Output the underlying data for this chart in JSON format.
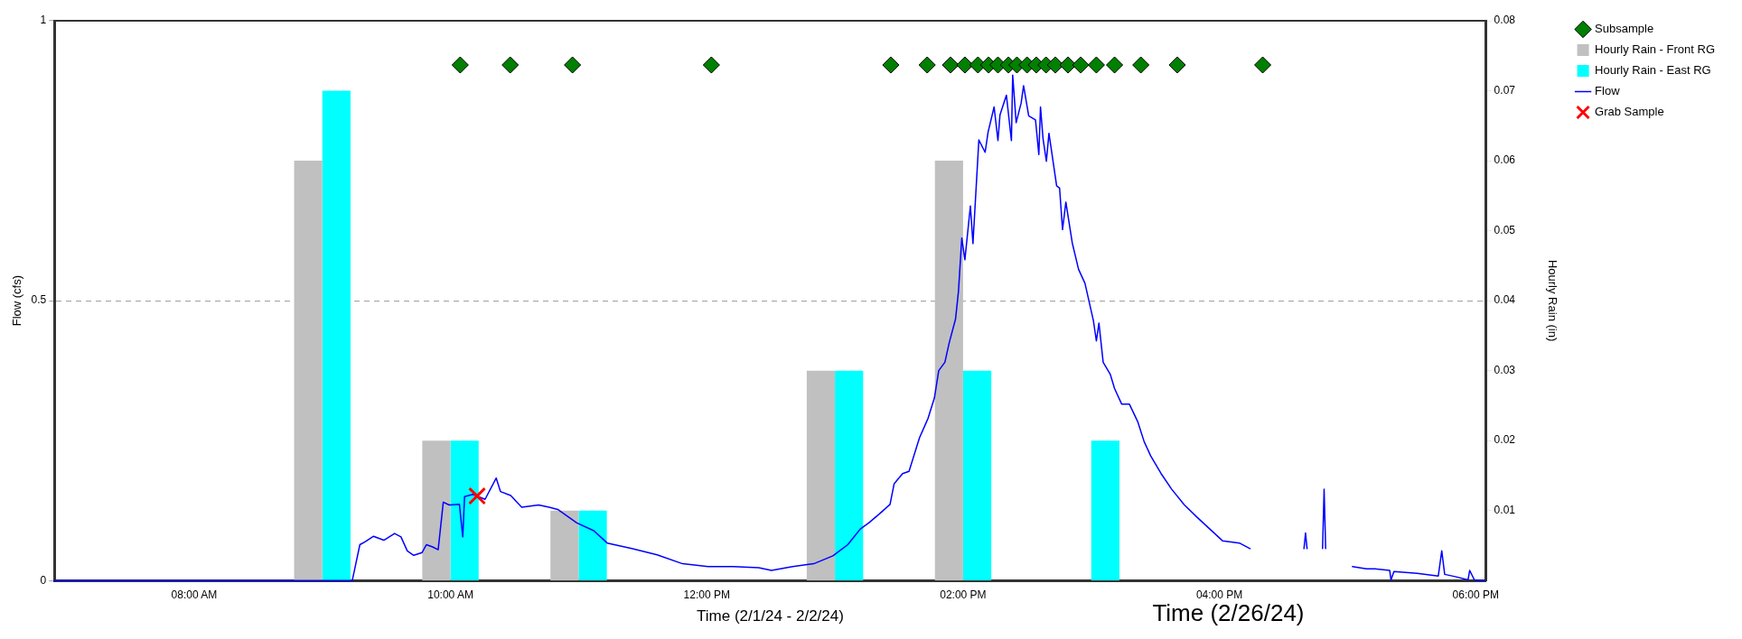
{
  "chart_data": {
    "type": "line",
    "xlabel": "Time (2/1/24 - 2/2/24)",
    "ylabel": "Flow (cfs)",
    "y2label": "Hourly Rain (in)",
    "xlim": [
      6.91,
      18.08
    ],
    "xticks": [
      {
        "value": 8,
        "label": "08:00 AM"
      },
      {
        "value": 10,
        "label": "10:00 AM"
      },
      {
        "value": 12,
        "label": "12:00 PM"
      },
      {
        "value": 14,
        "label": "02:00 PM"
      },
      {
        "value": 16,
        "label": "04:00 PM"
      },
      {
        "value": 18,
        "label": "06:00 PM"
      }
    ],
    "ylim": [
      0,
      1
    ],
    "yticks": [
      0,
      0.5,
      1
    ],
    "y2lim": [
      0,
      0.08
    ],
    "y2ticks": [
      0.01,
      0.02,
      0.03,
      0.04,
      0.05,
      0.06,
      0.07,
      0.08
    ],
    "grid": "y",
    "legend": "top right",
    "annotations": [
      "Time (2/26/24)"
    ],
    "series": [
      {
        "name": "Subsample",
        "type": "scatter",
        "marker": "diamond",
        "color": "#008000",
        "x": [
          10.076,
          10.466,
          10.952,
          12.036,
          13.436,
          13.72,
          13.902,
          14.014,
          14.116,
          14.199,
          14.272,
          14.354,
          14.42,
          14.499,
          14.571,
          14.647,
          14.72,
          14.819,
          14.918,
          15.04,
          15.182,
          15.387,
          15.671,
          16.338
        ],
        "values": [
          0.921,
          0.921,
          0.921,
          0.921,
          0.921,
          0.921,
          0.921,
          0.921,
          0.921,
          0.921,
          0.921,
          0.921,
          0.921,
          0.921,
          0.921,
          0.921,
          0.921,
          0.921,
          0.921,
          0.921,
          0.921,
          0.921,
          0.921,
          0.921
        ]
      },
      {
        "name": "Hourly Rain - Front RG",
        "type": "bar",
        "axis": "y2",
        "color": "#c0c0c0",
        "x": [
          9,
          10,
          11,
          13,
          14,
          15
        ],
        "values": [
          0.06,
          0.02,
          0.01,
          0.03,
          0.06,
          0
        ]
      },
      {
        "name": "Hourly Rain - East RG",
        "type": "bar",
        "axis": "y2",
        "color": "#00ffff",
        "x": [
          9,
          10,
          11,
          13,
          14,
          15
        ],
        "values": [
          0.07,
          0.02,
          0.01,
          0.03,
          0.03,
          0.02
        ]
      },
      {
        "name": "Flow",
        "color": "#0000ff",
        "x": [
          6.91,
          9.234,
          9.293,
          9.333,
          9.4,
          9.48,
          9.564,
          9.614,
          9.663,
          9.713,
          9.779,
          9.812,
          9.861,
          9.904,
          9.944,
          9.99,
          10.07,
          10.096,
          10.11,
          10.175,
          10.27,
          10.357,
          10.39,
          10.47,
          10.556,
          10.688,
          10.77,
          10.837,
          10.986,
          11.118,
          11.223,
          11.415,
          11.613,
          11.811,
          12.01,
          12.207,
          12.405,
          12.505,
          12.67,
          12.835,
          12.984,
          13.1,
          13.198,
          13.264,
          13.347,
          13.43,
          13.462,
          13.528,
          13.578,
          13.66,
          13.727,
          13.776,
          13.81,
          13.858,
          13.892,
          13.941,
          13.964,
          13.99,
          14.014,
          14.057,
          14.077,
          14.123,
          14.172,
          14.195,
          14.242,
          14.272,
          14.288,
          14.338,
          14.377,
          14.387,
          14.414,
          14.453,
          14.472,
          14.512,
          14.565,
          14.591,
          14.604,
          14.624,
          14.65,
          14.67,
          14.73,
          14.753,
          14.776,
          14.802,
          14.852,
          14.901,
          14.951,
          15.017,
          15.04,
          15.06,
          15.093,
          15.149,
          15.182,
          15.238,
          15.298,
          15.364,
          15.413,
          15.463,
          15.545,
          15.628,
          15.727,
          15.826,
          15.925,
          16.024,
          16.156,
          16.239,
          16.45,
          16.66,
          16.672,
          16.684,
          16.75,
          16.805,
          16.817,
          16.829,
          16.95,
          17.038,
          17.147,
          17.213,
          17.329,
          17.339,
          17.362,
          17.543,
          17.708,
          17.735,
          17.758,
          17.84,
          17.94,
          17.953,
          17.99,
          18.072
        ],
        "values": [
          0,
          0,
          0.064,
          0.069,
          0.079,
          0.072,
          0.084,
          0.078,
          0.053,
          0.045,
          0.05,
          0.064,
          0.06,
          0.055,
          0.14,
          0.135,
          0.136,
          0.078,
          0.15,
          0.154,
          0.145,
          0.183,
          0.159,
          0.152,
          0.131,
          0.135,
          0.131,
          0.127,
          0.103,
          0.089,
          0.067,
          0.057,
          0.046,
          0.03,
          0.025,
          0.025,
          0.023,
          0.018,
          0.025,
          0.03,
          0.044,
          0.064,
          0.092,
          0.103,
          0.119,
          0.136,
          0.173,
          0.191,
          0.195,
          0.255,
          0.29,
          0.326,
          0.375,
          0.39,
          0.425,
          0.467,
          0.517,
          0.612,
          0.573,
          0.669,
          0.602,
          0.787,
          0.765,
          0.801,
          0.846,
          0.786,
          0.832,
          0.867,
          0.786,
          0.903,
          0.818,
          0.853,
          0.884,
          0.83,
          0.823,
          0.761,
          0.846,
          0.789,
          0.749,
          0.799,
          0.705,
          0.701,
          0.627,
          0.676,
          0.603,
          0.556,
          0.531,
          0.464,
          0.428,
          0.46,
          0.39,
          0.368,
          0.343,
          0.315,
          0.315,
          0.283,
          0.248,
          0.223,
          0.191,
          0.163,
          0.135,
          0.113,
          0.092,
          0.071,
          0.067,
          0.057,
          null,
          0.057,
          0.085,
          0.057,
          null,
          0.057,
          0.163,
          0.057,
          null,
          0.025,
          0.021,
          0.021,
          0.018,
          0.001,
          0.016,
          0.013,
          0.008,
          0.053,
          0.011,
          0.007,
          0.001,
          0.018,
          0.001,
          0
        ]
      },
      {
        "name": "Grab Sample",
        "type": "scatter",
        "marker": "cross",
        "color": "#ff0000",
        "x": [
          10.208
        ],
        "values": [
          0.151
        ]
      }
    ]
  }
}
